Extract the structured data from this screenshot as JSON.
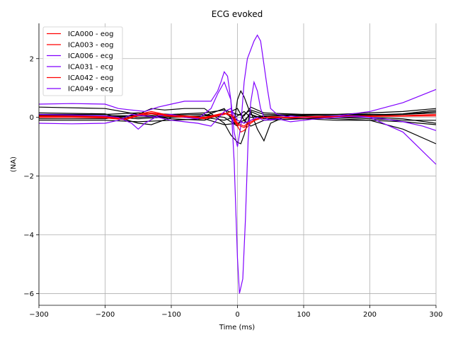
{
  "chart_data": {
    "type": "line",
    "title": "ECG evoked",
    "xlabel": "Time (ms)",
    "ylabel": "(NA)",
    "xlim": [
      -300,
      300
    ],
    "ylim": [
      -6.4,
      3.2
    ],
    "xticks": [
      -300,
      -200,
      -100,
      0,
      100,
      200,
      300
    ],
    "yticks": [
      -6,
      -4,
      -2,
      0,
      2
    ],
    "ytick_labels": [
      "−6",
      "−4",
      "−2",
      "0",
      "2"
    ],
    "xtick_labels": [
      "−300",
      "−200",
      "−100",
      "0",
      "100",
      "200",
      "300"
    ],
    "grid": true,
    "legend_position": "top-left",
    "colors": {
      "eog": "#ff0000",
      "ecg": "#8000ff",
      "other": "#000000"
    },
    "series": [
      {
        "name": "ICA000 - eog",
        "color": "#ff0000",
        "x": [
          -300,
          -250,
          -200,
          -170,
          -150,
          -130,
          -110,
          -80,
          -50,
          -20,
          -10,
          0,
          5,
          10,
          20,
          30,
          50,
          80,
          120,
          160,
          200,
          250,
          300
        ],
        "y": [
          0.05,
          0.04,
          0.02,
          -0.05,
          0.1,
          0.2,
          0.1,
          0.05,
          0.0,
          0.15,
          0.05,
          -0.3,
          -0.5,
          -0.45,
          -0.2,
          -0.05,
          0.02,
          0.0,
          0.03,
          0.05,
          0.05,
          0.06,
          0.1
        ]
      },
      {
        "name": "ICA003 - eog",
        "color": "#ff0000",
        "x": [
          -300,
          -250,
          -200,
          -170,
          -150,
          -130,
          -110,
          -80,
          -50,
          -20,
          -10,
          0,
          10,
          20,
          40,
          80,
          120,
          160,
          200,
          250,
          300
        ],
        "y": [
          0.0,
          0.0,
          -0.02,
          -0.08,
          0.05,
          0.12,
          0.05,
          0.0,
          -0.05,
          0.1,
          0.2,
          -0.2,
          -0.3,
          -0.1,
          0.0,
          -0.02,
          0.0,
          0.02,
          0.03,
          0.04,
          0.05
        ]
      },
      {
        "name": "ICA006 - ecg",
        "color": "#8000ff",
        "x": [
          -300,
          -250,
          -200,
          -180,
          -160,
          -150,
          -140,
          -120,
          -100,
          -80,
          -60,
          -40,
          -30,
          -20,
          -10,
          -5,
          0,
          3,
          8,
          12,
          16,
          20,
          25,
          30,
          35,
          40,
          50,
          60,
          70,
          80,
          100,
          150,
          200,
          250,
          300
        ],
        "y": [
          0.1,
          0.08,
          0.05,
          0.0,
          -0.2,
          -0.4,
          -0.2,
          0.05,
          0.1,
          0.0,
          -0.05,
          0.3,
          0.8,
          1.2,
          0.6,
          -1.5,
          -4.8,
          -6.0,
          -5.5,
          -3.5,
          -0.8,
          0.5,
          1.2,
          0.9,
          0.3,
          0.0,
          -0.1,
          -0.05,
          0.0,
          0.05,
          0.0,
          0.05,
          0.0,
          -0.5,
          -1.6
        ]
      },
      {
        "name": "ICA031 - ecg",
        "color": "#8000ff",
        "x": [
          -300,
          -250,
          -200,
          -180,
          -160,
          -140,
          -120,
          -100,
          -80,
          -60,
          -40,
          -30,
          -25,
          -20,
          -15,
          -10,
          -5,
          0,
          5,
          10,
          15,
          20,
          25,
          30,
          35,
          40,
          45,
          50,
          60,
          80,
          100,
          150,
          200,
          250,
          300
        ],
        "y": [
          0.45,
          0.47,
          0.45,
          0.3,
          0.25,
          0.2,
          0.35,
          0.45,
          0.55,
          0.55,
          0.55,
          0.9,
          1.2,
          1.55,
          1.4,
          0.6,
          -0.5,
          -1.0,
          -0.3,
          1.2,
          2.0,
          2.3,
          2.6,
          2.8,
          2.6,
          1.8,
          1.0,
          0.3,
          0.1,
          0.0,
          0.0,
          0.05,
          0.2,
          0.5,
          0.95
        ]
      },
      {
        "name": "ICA042 - eog",
        "color": "#ff0000",
        "x": [
          -300,
          -250,
          -200,
          -170,
          -150,
          -130,
          -110,
          -80,
          -50,
          -20,
          -10,
          0,
          10,
          20,
          40,
          80,
          120,
          160,
          200,
          250,
          300
        ],
        "y": [
          0.02,
          0.02,
          0.0,
          -0.05,
          0.08,
          0.15,
          0.08,
          0.02,
          -0.02,
          0.12,
          0.1,
          -0.25,
          -0.35,
          -0.15,
          0.0,
          0.0,
          0.02,
          0.03,
          0.04,
          0.05,
          0.06
        ]
      },
      {
        "name": "ICA049 - ecg",
        "color": "#8000ff",
        "x": [
          -300,
          -250,
          -200,
          -180,
          -160,
          -140,
          -120,
          -100,
          -80,
          -60,
          -40,
          -20,
          -10,
          0,
          10,
          20,
          30,
          40,
          60,
          80,
          100,
          120,
          150,
          180,
          200,
          220,
          250,
          280,
          300
        ],
        "y": [
          -0.2,
          -0.22,
          -0.2,
          -0.1,
          0.1,
          0.05,
          0.0,
          -0.1,
          -0.15,
          -0.2,
          -0.3,
          0.2,
          0.3,
          -0.1,
          -0.2,
          -0.1,
          0.0,
          -0.1,
          -0.05,
          -0.15,
          -0.1,
          -0.05,
          0.0,
          0.05,
          0.0,
          -0.05,
          -0.15,
          -0.3,
          -0.45
        ]
      }
    ],
    "other_traces": [
      {
        "x": [
          -300,
          -200,
          -150,
          -130,
          -110,
          -80,
          -50,
          -20,
          -10,
          0,
          5,
          10,
          20,
          30,
          40,
          50,
          70,
          100,
          150,
          200,
          250,
          300
        ],
        "y": [
          0.35,
          0.3,
          0.1,
          0.3,
          0.25,
          0.3,
          0.3,
          -0.2,
          -0.6,
          -0.85,
          -0.9,
          -0.6,
          0.2,
          -0.4,
          -0.8,
          -0.2,
          0.0,
          0.0,
          -0.05,
          -0.1,
          -0.4,
          -0.9
        ]
      },
      {
        "x": [
          -300,
          -200,
          -150,
          -130,
          -100,
          -50,
          -20,
          -5,
          0,
          5,
          10,
          20,
          30,
          50,
          100,
          150,
          200,
          250,
          300
        ],
        "y": [
          0.15,
          0.12,
          -0.2,
          -0.25,
          0.0,
          0.05,
          0.3,
          -0.2,
          0.6,
          0.9,
          0.7,
          0.1,
          0.0,
          0.05,
          0.1,
          0.1,
          0.15,
          0.2,
          0.3
        ]
      },
      {
        "x": [
          -300,
          -200,
          -150,
          -100,
          -50,
          -20,
          0,
          10,
          20,
          40,
          100,
          150,
          200,
          250,
          300
        ],
        "y": [
          0.1,
          0.1,
          0.15,
          0.1,
          0.15,
          0.25,
          0.1,
          0.05,
          0.35,
          0.15,
          0.1,
          0.1,
          0.1,
          0.1,
          0.2
        ]
      },
      {
        "x": [
          -300,
          -200,
          -150,
          -100,
          -50,
          -20,
          0,
          10,
          20,
          40,
          100,
          150,
          200,
          250,
          300
        ],
        "y": [
          -0.1,
          -0.1,
          -0.15,
          -0.1,
          -0.05,
          -0.25,
          -0.2,
          -0.1,
          -0.3,
          -0.1,
          -0.05,
          -0.1,
          -0.1,
          -0.15,
          -0.25
        ]
      },
      {
        "x": [
          -300,
          -200,
          -150,
          -100,
          -50,
          -20,
          0,
          10,
          20,
          40,
          100,
          150,
          200,
          250,
          300
        ],
        "y": [
          0.05,
          0.05,
          0.0,
          0.05,
          0.0,
          -0.1,
          0.05,
          0.2,
          0.0,
          0.05,
          0.05,
          0.0,
          0.05,
          0.1,
          0.15
        ]
      },
      {
        "x": [
          -300,
          -200,
          -150,
          -100,
          -50,
          -20,
          0,
          10,
          20,
          40,
          100,
          150,
          200,
          250,
          300
        ],
        "y": [
          -0.05,
          -0.05,
          0.1,
          -0.05,
          -0.1,
          0.15,
          -0.1,
          -0.2,
          0.2,
          0.0,
          -0.05,
          0.0,
          -0.05,
          -0.1,
          -0.1
        ]
      },
      {
        "x": [
          -300,
          -200,
          -150,
          -100,
          -50,
          -20,
          0,
          10,
          20,
          40,
          100,
          150,
          200,
          250,
          300
        ],
        "y": [
          0.0,
          0.02,
          -0.05,
          0.02,
          0.05,
          0.1,
          0.3,
          -0.1,
          0.1,
          -0.05,
          0.0,
          0.02,
          0.0,
          -0.05,
          -0.2
        ]
      },
      {
        "x": [
          -300,
          -200,
          -150,
          -100,
          -50,
          -20,
          0,
          10,
          20,
          40,
          100,
          150,
          200,
          250,
          300
        ],
        "y": [
          0.08,
          0.06,
          0.05,
          0.08,
          0.1,
          0.0,
          -0.3,
          0.1,
          0.25,
          0.1,
          0.08,
          0.06,
          0.08,
          0.12,
          0.25
        ]
      }
    ],
    "legend": [
      "ICA000 - eog",
      "ICA003 - eog",
      "ICA006 - ecg",
      "ICA031 - ecg",
      "ICA042 - eog",
      "ICA049 - ecg"
    ]
  }
}
